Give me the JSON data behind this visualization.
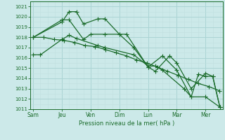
{
  "xlabel": "Pression niveau de la mer( hPa )",
  "background_color": "#cce9e9",
  "grid_color_major": "#aad4d4",
  "grid_color_minor": "#c0e0e0",
  "line_color": "#1a6b2a",
  "ylim": [
    1011,
    1021.5
  ],
  "yticks": [
    1011,
    1012,
    1013,
    1014,
    1015,
    1016,
    1017,
    1018,
    1019,
    1020,
    1021
  ],
  "xtick_labels": [
    "Sam",
    "Jeu",
    "Ven",
    "Dim",
    "Lun",
    "Mar",
    "Mer"
  ],
  "xtick_positions": [
    0,
    2,
    4,
    6,
    8,
    10,
    12
  ],
  "xlim": [
    -0.2,
    13.2
  ],
  "series": [
    {
      "x": [
        0,
        2,
        2.5,
        3.0,
        3.5,
        4.5,
        5.0,
        6.0,
        6.5,
        8.0,
        9.0,
        10.0,
        11.0,
        11.5,
        12.0,
        12.5,
        13.0
      ],
      "y": [
        1018.0,
        1019.5,
        1020.5,
        1020.5,
        1019.3,
        1019.8,
        1019.8,
        1018.3,
        1018.3,
        1015.1,
        1016.2,
        1014.8,
        1012.2,
        1014.4,
        1014.2,
        1014.2,
        1011.2
      ]
    },
    {
      "x": [
        0,
        0.5,
        2.0,
        2.5,
        3.0,
        4.5,
        5.0,
        7.0,
        8.0,
        8.5,
        9.0,
        10.5,
        11.0,
        12.0,
        13.0
      ],
      "y": [
        1016.3,
        1016.3,
        1017.8,
        1018.2,
        1017.9,
        1017.2,
        1017.0,
        1016.3,
        1015.2,
        1015.2,
        1014.8,
        1013.0,
        1012.2,
        1012.2,
        1011.2
      ]
    },
    {
      "x": [
        0,
        0.72,
        1.44,
        2.16,
        2.88,
        3.6,
        4.32,
        5.04,
        5.76,
        6.48,
        7.2,
        7.92,
        8.64,
        9.36,
        10.08,
        10.8,
        11.52,
        12.24,
        12.96
      ],
      "y": [
        1018.0,
        1018.0,
        1017.8,
        1017.7,
        1017.5,
        1017.2,
        1017.1,
        1016.8,
        1016.5,
        1016.2,
        1015.8,
        1015.5,
        1015.1,
        1014.7,
        1014.3,
        1013.9,
        1013.5,
        1013.2,
        1012.8
      ]
    },
    {
      "x": [
        0,
        2.0,
        2.5,
        3.5,
        4.0,
        5.0,
        6.0,
        7.0,
        8.0,
        8.5,
        9.5,
        10.0,
        11.0,
        12.0,
        12.5,
        13.0
      ],
      "y": [
        1018.0,
        1019.7,
        1019.7,
        1017.8,
        1018.3,
        1018.3,
        1018.3,
        1017.0,
        1015.1,
        1014.7,
        1016.2,
        1015.5,
        1013.0,
        1014.5,
        1014.2,
        1011.2
      ]
    }
  ],
  "markersize": 2.5,
  "linewidth": 0.9
}
